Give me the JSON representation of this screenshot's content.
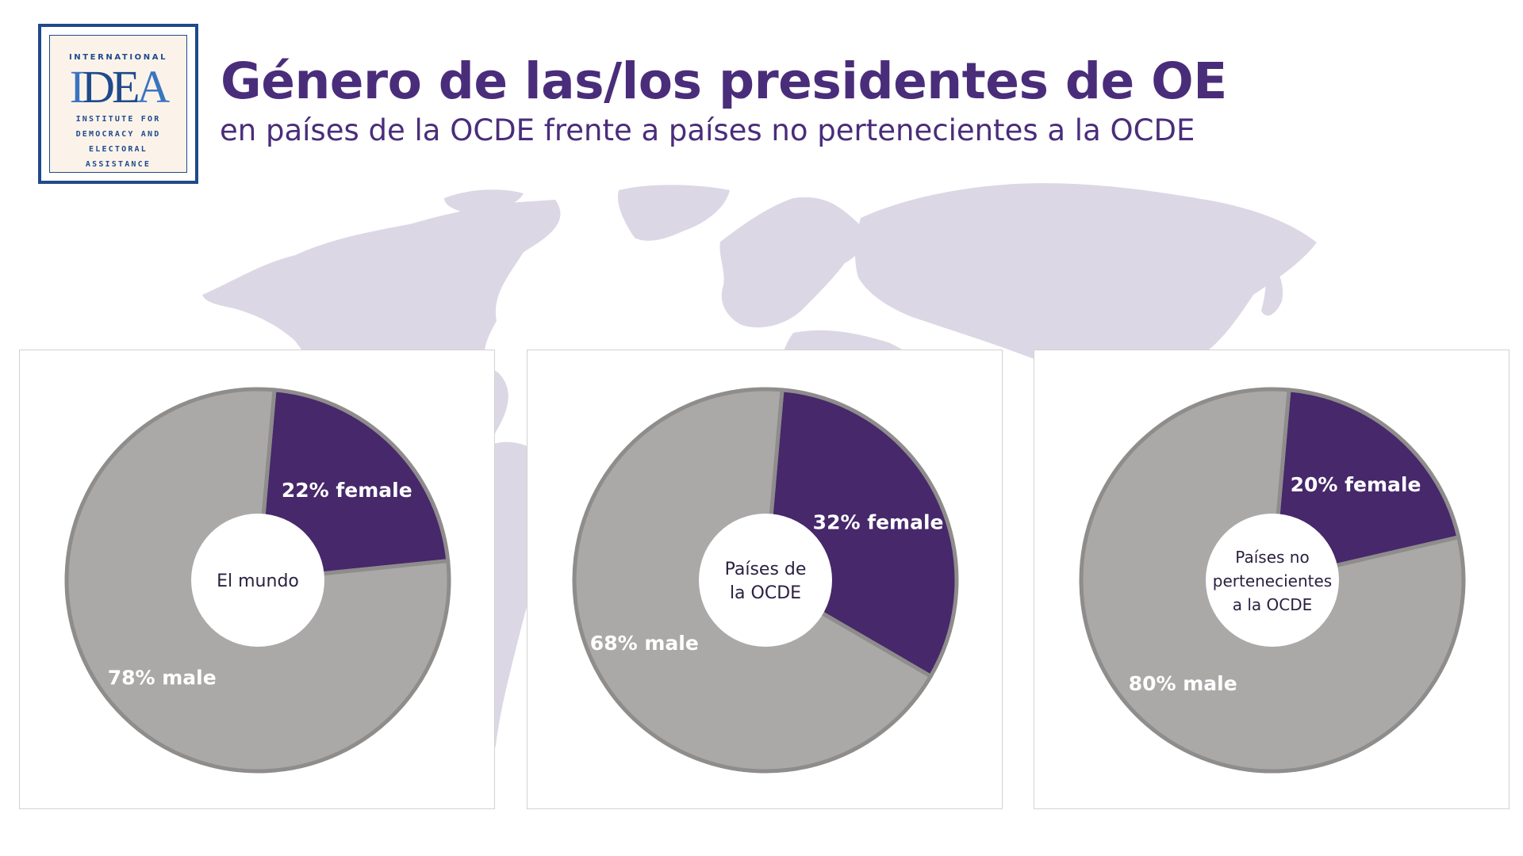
{
  "logo": {
    "top_word": "INTERNATIONAL",
    "mark": "IDEA",
    "lines": [
      "INSTITUTE FOR",
      "DEMOCRACY AND",
      "ELECTORAL",
      "ASSISTANCE"
    ]
  },
  "title": "Género de las/los presidentes de OE",
  "subtitle": "en países de la OCDE frente a países no pertenecientes a la OCDE",
  "colors": {
    "female": "#46286b",
    "male": "#aba8a8",
    "slice_border": "#8f8c8c",
    "map": "#dcd7e5",
    "title": "#4a2d7a"
  },
  "chart_data": [
    {
      "type": "pie",
      "center_label": [
        "El mundo"
      ],
      "categories": [
        "female",
        "male"
      ],
      "values": [
        22,
        78
      ],
      "data_labels": [
        "22% female",
        "78% male"
      ]
    },
    {
      "type": "pie",
      "center_label": [
        "Países de",
        "la OCDE"
      ],
      "categories": [
        "female",
        "male"
      ],
      "values": [
        32,
        68
      ],
      "data_labels": [
        "32% female",
        "68% male"
      ]
    },
    {
      "type": "pie",
      "center_label": [
        "Países no",
        "pertenecientes",
        "a la OCDE"
      ],
      "categories": [
        "female",
        "male"
      ],
      "values": [
        20,
        80
      ],
      "data_labels": [
        "20% female",
        "80% male"
      ]
    }
  ]
}
